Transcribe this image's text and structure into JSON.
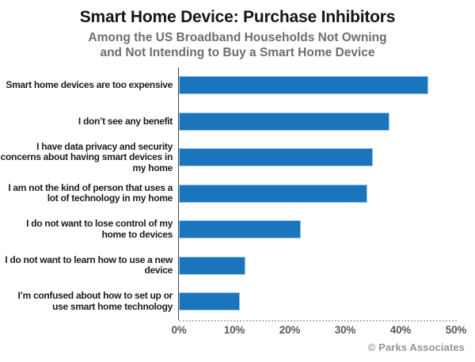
{
  "chart_data": {
    "type": "bar",
    "orientation": "horizontal",
    "title": "Smart Home Device: Purchase Inhibitors",
    "subtitle_lines": [
      "Among the US Broadband Households Not Owning",
      "and Not Intending to Buy a Smart Home Device"
    ],
    "categories": [
      "Smart home devices are too expensive",
      "I don’t see any benefit",
      "I have data privacy and security concerns about having smart devices in my home",
      "I am not the kind of person that uses a lot of technology in my home",
      "I do not want to lose control of my home to devices",
      "I do not want to learn how to use a new device",
      "I’m confused about how to set up or use smart home technology"
    ],
    "values": [
      45,
      38,
      35,
      34,
      22,
      12,
      11
    ],
    "value_unit": "%",
    "xlabel": "",
    "ylabel": "",
    "xlim": [
      0,
      50
    ],
    "x_tick_labels": [
      "0%",
      "10%",
      "20%",
      "30%",
      "40%",
      "50%"
    ],
    "bar_color": "#1b75bc",
    "grid": "dotted baseline only",
    "legend_position": "none",
    "attribution": "© Parks Associates"
  }
}
